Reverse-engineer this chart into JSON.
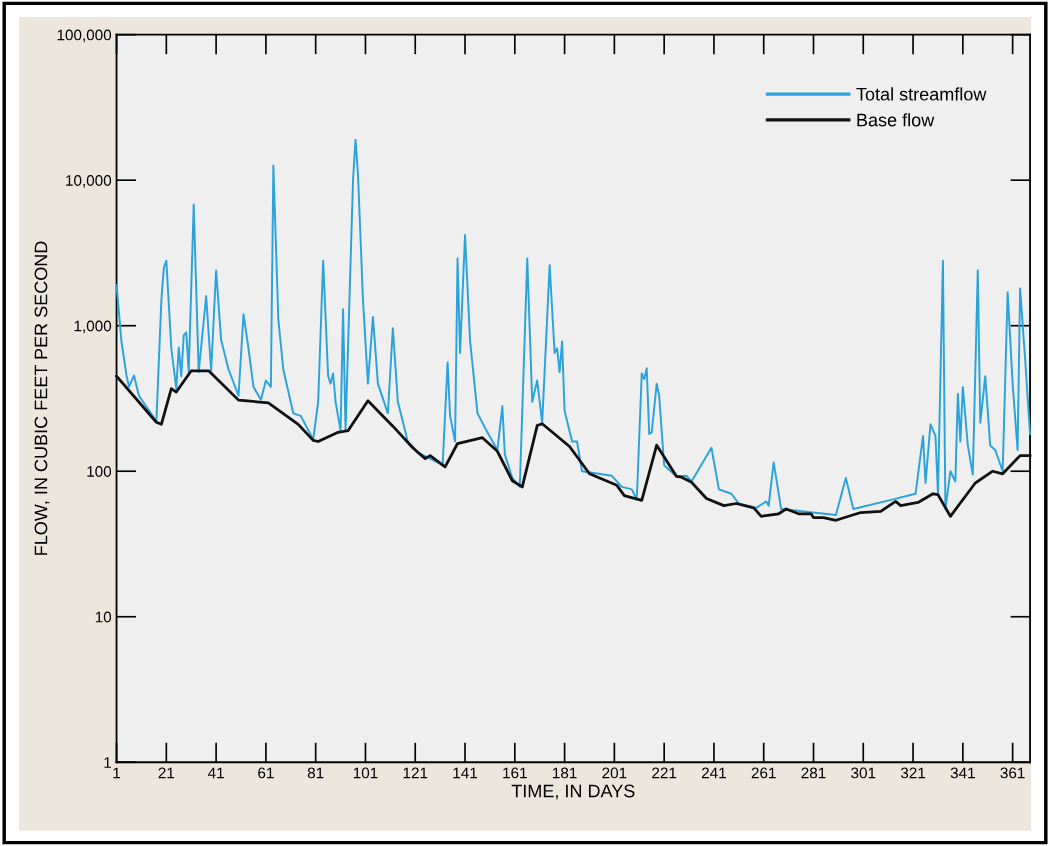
{
  "chart_data": {
    "type": "line",
    "xlabel": "TIME, IN DAYS",
    "ylabel": "FLOW, IN CUBIC FEET PER SECOND",
    "log": "y",
    "xlim": [
      1,
      368
    ],
    "xticks": [
      1,
      21,
      41,
      61,
      81,
      101,
      121,
      141,
      161,
      181,
      201,
      221,
      241,
      261,
      281,
      301,
      321,
      341,
      361
    ],
    "ylim": [
      1,
      100000
    ],
    "yticks": [
      {
        "value": 1,
        "label": "1"
      },
      {
        "value": 10,
        "label": "10"
      },
      {
        "value": 100,
        "label": "100"
      },
      {
        "value": 1000,
        "label": "1,000"
      },
      {
        "value": 10000,
        "label": "10,000"
      },
      {
        "value": 100000,
        "label": "100,000"
      }
    ],
    "grid": false,
    "legend": "top right",
    "marker": "none",
    "line_style": "solid",
    "series": [
      {
        "name": "Total streamflow",
        "color": "#2aa3dc",
        "x": [
          1,
          3,
          5,
          6,
          8,
          10,
          17,
          19,
          20,
          21,
          23,
          25,
          26,
          27,
          28,
          29,
          30,
          32,
          34,
          37,
          39,
          41,
          43,
          46,
          50,
          52,
          54,
          56,
          59,
          61,
          63,
          64,
          66,
          68,
          72,
          75,
          80,
          82,
          84,
          86,
          87,
          88,
          89,
          91,
          92,
          93,
          96,
          97,
          98,
          100,
          102,
          104,
          106,
          110,
          112,
          114,
          118,
          122,
          132,
          134,
          135,
          137,
          138,
          139,
          141,
          143,
          146,
          150,
          154,
          156,
          157,
          160,
          163,
          166,
          168,
          170,
          172,
          175,
          177,
          178,
          179,
          180,
          181,
          184,
          186,
          188,
          200,
          204,
          208,
          210,
          212,
          213,
          214,
          215,
          216,
          218,
          219,
          221,
          226,
          230,
          232,
          240,
          243,
          248,
          251,
          258,
          262,
          263,
          265,
          268,
          290,
          294,
          297,
          313,
          322,
          325,
          326,
          328,
          330,
          331,
          333,
          334,
          336,
          338,
          339,
          340,
          341,
          343,
          345,
          347,
          348,
          350,
          352,
          354,
          357,
          359,
          361,
          363,
          364,
          366,
          368
        ],
        "values": [
          1900,
          770,
          455,
          380,
          455,
          330,
          220,
          1500,
          2500,
          2800,
          700,
          370,
          710,
          450,
          860,
          900,
          480,
          6800,
          480,
          1600,
          490,
          2400,
          800,
          500,
          330,
          1200,
          700,
          380,
          310,
          420,
          380,
          12600,
          1100,
          500,
          250,
          240,
          165,
          300,
          2800,
          450,
          400,
          470,
          300,
          190,
          1300,
          190,
          10000,
          19000,
          11000,
          1500,
          400,
          1150,
          400,
          250,
          960,
          300,
          160,
          135,
          110,
          560,
          240,
          160,
          2900,
          650,
          4200,
          800,
          250,
          185,
          140,
          280,
          130,
          90,
          78,
          2900,
          300,
          420,
          215,
          2600,
          650,
          700,
          480,
          780,
          260,
          160,
          160,
          100,
          93,
          78,
          75,
          64,
          470,
          430,
          510,
          180,
          185,
          400,
          330,
          110,
          92,
          93,
          85,
          145,
          75,
          70,
          60,
          56,
          62,
          58,
          115,
          55,
          50,
          90,
          55,
          64,
          70,
          175,
          83,
          210,
          175,
          70,
          2800,
          55,
          100,
          85,
          340,
          160,
          380,
          150,
          95,
          2400,
          215,
          450,
          150,
          140,
          100,
          1700,
          400,
          140,
          1800,
          600,
          180
        ]
      },
      {
        "name": "Base flow",
        "color": "#111111",
        "x": [
          1,
          17,
          19,
          23,
          25,
          31,
          38,
          50,
          62,
          74,
          80,
          82,
          90,
          94,
          102,
          112,
          120,
          122,
          125,
          127,
          133,
          138,
          148,
          154,
          160,
          164,
          170,
          172,
          183,
          191,
          202,
          205,
          212,
          218,
          226,
          228,
          232,
          238,
          245,
          250,
          257,
          260,
          267,
          270,
          275,
          280,
          281,
          285,
          290,
          300,
          308,
          314,
          316,
          323,
          329,
          331,
          336,
          346,
          353,
          357,
          364,
          368
        ],
        "values": [
          450,
          217,
          210,
          369,
          350,
          490,
          490,
          308,
          295,
          210,
          163,
          160,
          185,
          190,
          305,
          204,
          145,
          135,
          122,
          128,
          107,
          155,
          170,
          137,
          86,
          78,
          206,
          212,
          148,
          96,
          80,
          68,
          63,
          151,
          92,
          91,
          84,
          65,
          58,
          60,
          56,
          49,
          51,
          55,
          51,
          51,
          48,
          48,
          46,
          52,
          53,
          62,
          58,
          61,
          70,
          69,
          49,
          83,
          100,
          96,
          128,
          128
        ]
      }
    ]
  }
}
